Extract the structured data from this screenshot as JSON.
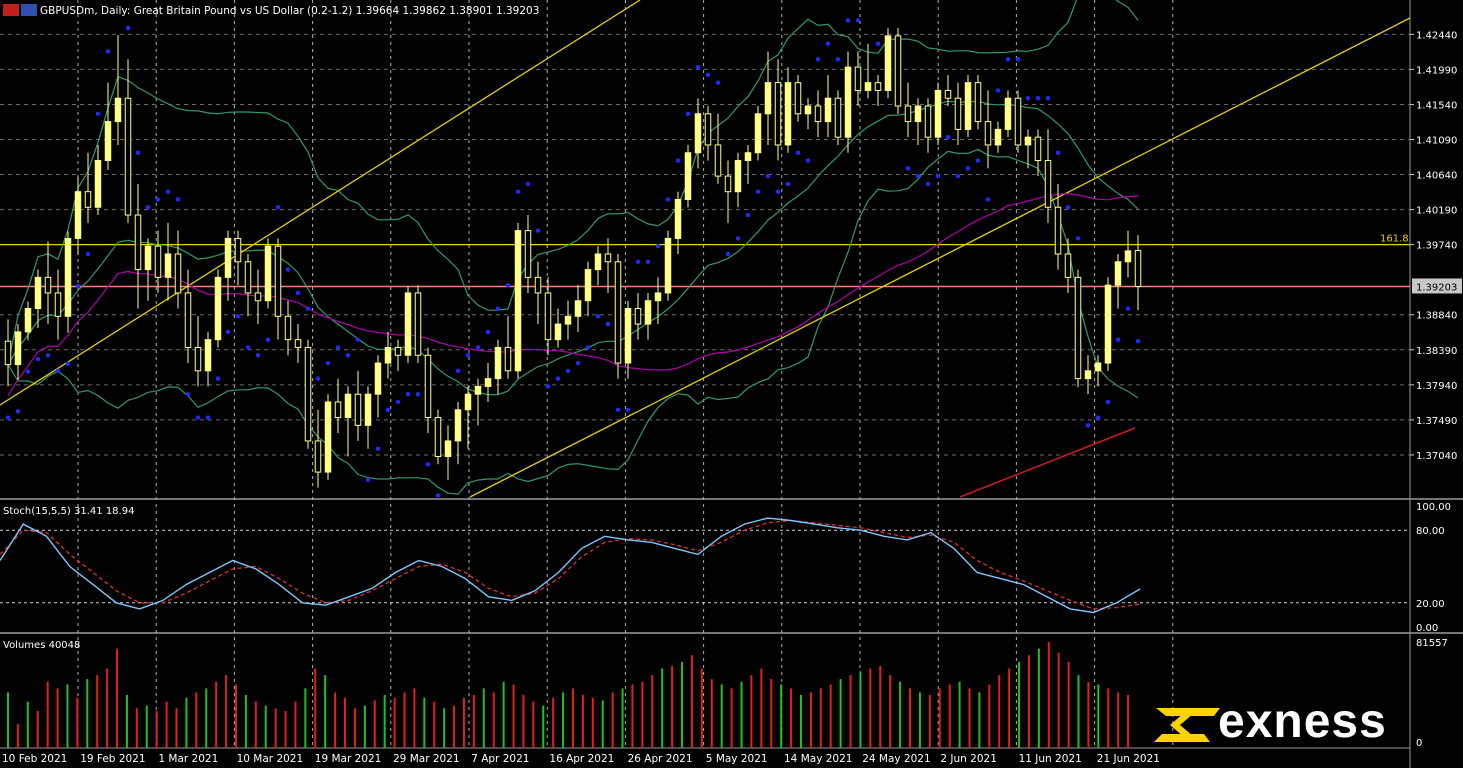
{
  "header": {
    "symbol_line": "GBPUSDm, Daily:  Great Britain Pound vs US Dollar (0.2-1.2)  1.39664 1.39862 1.38901 1.39203"
  },
  "brand": {
    "name": "exness",
    "color": "#ffd200"
  },
  "colors": {
    "background": "#000000",
    "grid": "#6a6a6a",
    "candle": "#ffff88",
    "trendline": "#e6d200",
    "fib_line": "#e6d200",
    "price_line": "#ff7f7f",
    "bollinger": "#2e9a6a",
    "ma_purple": "#b000b0",
    "ma_red": "#c81e1e",
    "sar": "#1f2bff",
    "stoch_main": "#7ec8ff",
    "stoch_signal": "#e03030",
    "volume_up": "#20c020",
    "volume_down": "#e02020",
    "axis_text": "#ffffff"
  },
  "chart_data": [
    {
      "type": "candlestick",
      "title": "GBPUSDm, Daily:  Great Britain Pound vs US Dollar (0.2-1.2)  1.39664 1.39862 1.38901 1.39203",
      "ylim": [
        1.365,
        1.4265
      ],
      "y_ticks": [
        "1.42440",
        "1.41990",
        "1.41540",
        "1.41090",
        "1.40640",
        "1.40190",
        "1.39740",
        "1.39203",
        "1.38840",
        "1.38390",
        "1.37940",
        "1.37490",
        "1.37040"
      ],
      "x_ticks": [
        "10 Feb 2021",
        "19 Feb 2021",
        "1 Mar 2021",
        "10 Mar 2021",
        "19 Mar 2021",
        "29 Mar 2021",
        "7 Apr 2021",
        "16 Apr 2021",
        "26 Apr 2021",
        "5 May 2021",
        "14 May 2021",
        "24 May 2021",
        "2 Jun 2021",
        "11 Jun 2021",
        "21 Jun 2021"
      ],
      "current_price": "1.39203",
      "fib_level": {
        "label": "161.8",
        "value": 1.3974
      },
      "ohlc": [
        [
          1.385,
          1.3878,
          1.3792,
          1.382
        ],
        [
          1.382,
          1.3872,
          1.38,
          1.3862
        ],
        [
          1.3862,
          1.3901,
          1.3851,
          1.3892
        ],
        [
          1.3892,
          1.3942,
          1.3867,
          1.3932
        ],
        [
          1.3932,
          1.3978,
          1.3872,
          1.3912
        ],
        [
          1.3912,
          1.3942,
          1.3852,
          1.3882
        ],
        [
          1.3882,
          1.3991,
          1.3861,
          1.3982
        ],
        [
          1.3982,
          1.4061,
          1.3961,
          1.4042
        ],
        [
          1.4042,
          1.4092,
          1.4002,
          1.4022
        ],
        [
          1.4022,
          1.4102,
          1.4012,
          1.4082
        ],
        [
          1.4082,
          1.4182,
          1.407,
          1.4132
        ],
        [
          1.4132,
          1.4243,
          1.4102,
          1.4162
        ],
        [
          1.4162,
          1.4212,
          1.4002,
          1.4012
        ],
        [
          1.4012,
          1.4052,
          1.3892,
          1.3942
        ],
        [
          1.3942,
          1.3982,
          1.3902,
          1.3972
        ],
        [
          1.3972,
          1.3992,
          1.3912,
          1.3932
        ],
        [
          1.3932,
          1.4002,
          1.3902,
          1.3962
        ],
        [
          1.3962,
          1.3992,
          1.3892,
          1.3912
        ],
        [
          1.3912,
          1.3942,
          1.3822,
          1.3842
        ],
        [
          1.3842,
          1.3882,
          1.3792,
          1.3812
        ],
        [
          1.3812,
          1.3862,
          1.3792,
          1.3852
        ],
        [
          1.3852,
          1.3942,
          1.3842,
          1.3932
        ],
        [
          1.3932,
          1.3992,
          1.3902,
          1.3982
        ],
        [
          1.3982,
          1.3992,
          1.3922,
          1.3952
        ],
        [
          1.3952,
          1.3962,
          1.3882,
          1.3912
        ],
        [
          1.3912,
          1.3942,
          1.3872,
          1.3902
        ],
        [
          1.3902,
          1.3982,
          1.3892,
          1.3972
        ],
        [
          1.3972,
          1.3982,
          1.3852,
          1.3882
        ],
        [
          1.3882,
          1.3902,
          1.3832,
          1.3852
        ],
        [
          1.3852,
          1.3872,
          1.3822,
          1.3842
        ],
        [
          1.3842,
          1.3852,
          1.3712,
          1.3722
        ],
        [
          1.3722,
          1.3762,
          1.3662,
          1.3682
        ],
        [
          1.3682,
          1.3782,
          1.3672,
          1.3772
        ],
        [
          1.3772,
          1.3802,
          1.3732,
          1.3752
        ],
        [
          1.3752,
          1.3792,
          1.3702,
          1.3782
        ],
        [
          1.3782,
          1.3812,
          1.3722,
          1.3742
        ],
        [
          1.3742,
          1.3792,
          1.3712,
          1.3782
        ],
        [
          1.3782,
          1.3832,
          1.3752,
          1.3822
        ],
        [
          1.3822,
          1.3862,
          1.3802,
          1.3842
        ],
        [
          1.3842,
          1.3852,
          1.3812,
          1.3832
        ],
        [
          1.3832,
          1.3921,
          1.3822,
          1.3912
        ],
        [
          1.3912,
          1.3922,
          1.3822,
          1.3832
        ],
        [
          1.3832,
          1.3842,
          1.3732,
          1.3752
        ],
        [
          1.3752,
          1.3762,
          1.3692,
          1.3702
        ],
        [
          1.3702,
          1.3742,
          1.3672,
          1.3722
        ],
        [
          1.3722,
          1.3772,
          1.3692,
          1.3762
        ],
        [
          1.3762,
          1.3792,
          1.3712,
          1.3782
        ],
        [
          1.3782,
          1.3802,
          1.3742,
          1.3792
        ],
        [
          1.3792,
          1.3822,
          1.3772,
          1.3802
        ],
        [
          1.3802,
          1.3852,
          1.3782,
          1.3842
        ],
        [
          1.3842,
          1.3882,
          1.3802,
          1.3812
        ],
        [
          1.3812,
          1.4002,
          1.3802,
          1.3992
        ],
        [
          1.3992,
          1.4012,
          1.3912,
          1.3932
        ],
        [
          1.3932,
          1.3952,
          1.3872,
          1.3912
        ],
        [
          1.3912,
          1.3932,
          1.3832,
          1.3852
        ],
        [
          1.3852,
          1.3892,
          1.3842,
          1.3872
        ],
        [
          1.3872,
          1.3902,
          1.3852,
          1.3882
        ],
        [
          1.3882,
          1.3922,
          1.3862,
          1.3902
        ],
        [
          1.3902,
          1.3952,
          1.3882,
          1.3942
        ],
        [
          1.3942,
          1.3972,
          1.3922,
          1.3962
        ],
        [
          1.3962,
          1.3982,
          1.3912,
          1.3952
        ],
        [
          1.3952,
          1.3962,
          1.3802,
          1.3822
        ],
        [
          1.3822,
          1.3902,
          1.3802,
          1.3892
        ],
        [
          1.3892,
          1.3912,
          1.3852,
          1.3872
        ],
        [
          1.3872,
          1.3912,
          1.3852,
          1.3902
        ],
        [
          1.3902,
          1.3932,
          1.3872,
          1.3912
        ],
        [
          1.3912,
          1.3992,
          1.3902,
          1.3982
        ],
        [
          1.3982,
          1.4042,
          1.3962,
          1.4032
        ],
        [
          1.4032,
          1.4102,
          1.4022,
          1.4092
        ],
        [
          1.4092,
          1.4162,
          1.4072,
          1.4142
        ],
        [
          1.4142,
          1.4152,
          1.4082,
          1.4102
        ],
        [
          1.4102,
          1.4142,
          1.4052,
          1.4062
        ],
        [
          1.4062,
          1.4082,
          1.4002,
          1.4042
        ],
        [
          1.4042,
          1.4092,
          1.4022,
          1.4082
        ],
        [
          1.4082,
          1.4102,
          1.4052,
          1.4092
        ],
        [
          1.4092,
          1.4152,
          1.4082,
          1.4142
        ],
        [
          1.4142,
          1.4222,
          1.4102,
          1.4182
        ],
        [
          1.4182,
          1.4212,
          1.4082,
          1.4102
        ],
        [
          1.4102,
          1.4202,
          1.4092,
          1.4182
        ],
        [
          1.4182,
          1.4192,
          1.4132,
          1.4142
        ],
        [
          1.4142,
          1.4162,
          1.4122,
          1.4152
        ],
        [
          1.4152,
          1.4172,
          1.4112,
          1.4132
        ],
        [
          1.4132,
          1.4192,
          1.4112,
          1.4162
        ],
        [
          1.4162,
          1.4172,
          1.4102,
          1.4112
        ],
        [
          1.4112,
          1.4222,
          1.4092,
          1.4202
        ],
        [
          1.4202,
          1.4222,
          1.4152,
          1.4172
        ],
        [
          1.4172,
          1.4232,
          1.4162,
          1.4182
        ],
        [
          1.4182,
          1.4192,
          1.4152,
          1.4172
        ],
        [
          1.4172,
          1.4252,
          1.4162,
          1.4242
        ],
        [
          1.4242,
          1.4252,
          1.4142,
          1.4152
        ],
        [
          1.4152,
          1.4182,
          1.4112,
          1.4132
        ],
        [
          1.4132,
          1.4162,
          1.4102,
          1.4152
        ],
        [
          1.4152,
          1.4162,
          1.4092,
          1.4112
        ],
        [
          1.4112,
          1.4182,
          1.4102,
          1.4172
        ],
        [
          1.4172,
          1.4192,
          1.4152,
          1.4162
        ],
        [
          1.4162,
          1.4182,
          1.4102,
          1.4122
        ],
        [
          1.4122,
          1.4192,
          1.4112,
          1.4182
        ],
        [
          1.4182,
          1.4192,
          1.4122,
          1.4132
        ],
        [
          1.4132,
          1.4172,
          1.4072,
          1.4102
        ],
        [
          1.4102,
          1.4132,
          1.4092,
          1.4122
        ],
        [
          1.4122,
          1.4172,
          1.4112,
          1.4162
        ],
        [
          1.4162,
          1.4172,
          1.4092,
          1.4102
        ],
        [
          1.4102,
          1.4122,
          1.4072,
          1.4112
        ],
        [
          1.4112,
          1.4122,
          1.4062,
          1.4082
        ],
        [
          1.4082,
          1.4122,
          1.4002,
          1.4022
        ],
        [
          1.4022,
          1.4052,
          1.3942,
          1.3962
        ],
        [
          1.3962,
          1.3982,
          1.3912,
          1.3932
        ],
        [
          1.3932,
          1.3942,
          1.3791,
          1.3802
        ],
        [
          1.3802,
          1.3832,
          1.3782,
          1.3812
        ],
        [
          1.3812,
          1.3832,
          1.3792,
          1.3822
        ],
        [
          1.3822,
          1.3932,
          1.3812,
          1.3922
        ],
        [
          1.3922,
          1.3962,
          1.3892,
          1.3952
        ],
        [
          1.3952,
          1.3992,
          1.3932,
          1.3966
        ],
        [
          1.39664,
          1.39862,
          1.38901,
          1.39203
        ]
      ],
      "indicators": {
        "parabolic_sar": "dots",
        "bollinger_bands": "green lines",
        "moving_averages": [
          "purple",
          "red"
        ],
        "trendlines": 3
      }
    },
    {
      "type": "line",
      "title": "Stoch(15,5,5) 31.41 18.94",
      "ylim": [
        0,
        100
      ],
      "y_ticks": [
        "100.00",
        "80.00",
        "20.00",
        "0.00"
      ],
      "levels": [
        80,
        20
      ],
      "series": [
        {
          "name": "main",
          "values": [
            55,
            85,
            75,
            50,
            35,
            20,
            15,
            22,
            35,
            45,
            55,
            48,
            35,
            20,
            18,
            25,
            32,
            45,
            55,
            50,
            40,
            25,
            22,
            30,
            45,
            65,
            75,
            72,
            70,
            65,
            60,
            75,
            85,
            90,
            88,
            85,
            82,
            80,
            75,
            72,
            78,
            65,
            45,
            40,
            35,
            25,
            15,
            12,
            20,
            31.41
          ]
        },
        {
          "name": "signal",
          "values": [
            60,
            80,
            78,
            60,
            45,
            30,
            20,
            20,
            28,
            38,
            48,
            50,
            40,
            28,
            20,
            22,
            30,
            40,
            50,
            52,
            45,
            32,
            25,
            28,
            40,
            58,
            70,
            73,
            72,
            68,
            63,
            70,
            80,
            86,
            88,
            86,
            84,
            82,
            78,
            74,
            76,
            70,
            55,
            45,
            38,
            30,
            22,
            15,
            16,
            18.94
          ]
        }
      ]
    },
    {
      "type": "bar",
      "title": "Volumes 40048",
      "y_ticks": [
        "81557",
        "0"
      ],
      "ylim": [
        0,
        81557
      ],
      "values": [
        42000,
        18000,
        35000,
        28000,
        50000,
        45000,
        48000,
        38000,
        52000,
        55000,
        60000,
        75000,
        40000,
        30000,
        32000,
        28000,
        35000,
        30000,
        38000,
        42000,
        45000,
        50000,
        55000,
        48000,
        40000,
        35000,
        32000,
        30000,
        28000,
        35000,
        45000,
        60000,
        55000,
        42000,
        38000,
        30000,
        32000,
        36000,
        40000,
        38000,
        42000,
        45000,
        38000,
        35000,
        30000,
        32000,
        38000,
        40000,
        45000,
        42000,
        50000,
        48000,
        40000,
        35000,
        32000,
        38000,
        42000,
        45000,
        40000,
        38000,
        36000,
        42000,
        45000,
        48000,
        50000,
        55000,
        60000,
        62000,
        65000,
        70000,
        60000,
        52000,
        48000,
        45000,
        50000,
        55000,
        60000,
        52000,
        48000,
        45000,
        40000,
        42000,
        45000,
        48000,
        52000,
        55000,
        58000,
        60000,
        62000,
        55000,
        50000,
        45000,
        42000,
        40000,
        45000,
        48000,
        50000,
        45000,
        42000,
        48000,
        55000,
        60000,
        65000,
        70000,
        75000,
        80000,
        72000,
        65000,
        55000,
        50000,
        48000,
        45000,
        42000,
        40048
      ],
      "up_down": "alternating colors"
    }
  ]
}
